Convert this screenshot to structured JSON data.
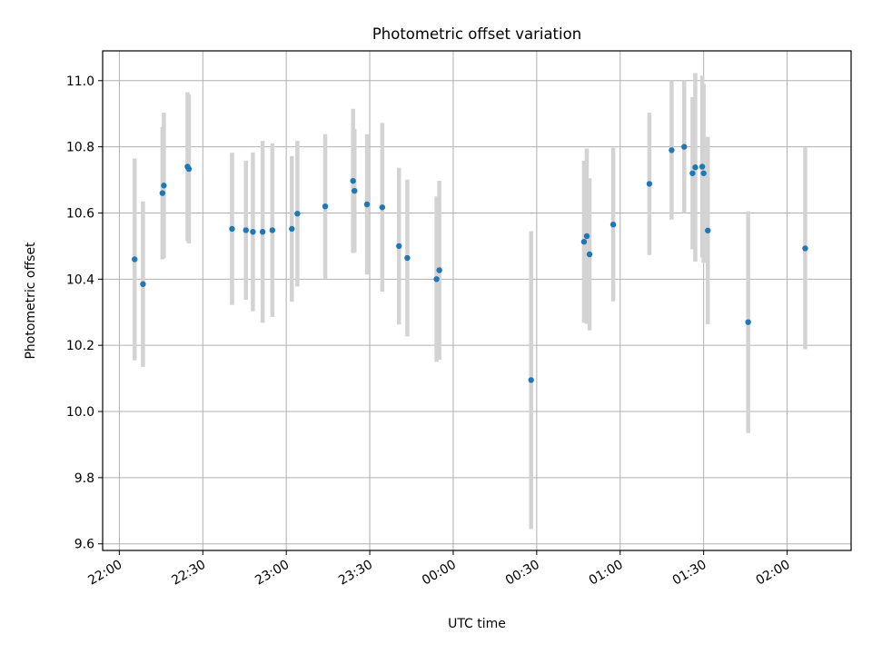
{
  "chart_data": {
    "type": "scatter",
    "title": "Photometric offset variation",
    "xlabel": "UTC time",
    "ylabel": "Photometric offset",
    "xlim": [
      "21:54",
      "02:23"
    ],
    "ylim": [
      9.58,
      11.09
    ],
    "x_ticks": [
      {
        "t": "22:00",
        "label": "22:00"
      },
      {
        "t": "22:30",
        "label": "22:30"
      },
      {
        "t": "23:00",
        "label": "23:00"
      },
      {
        "t": "23:30",
        "label": "23:30"
      },
      {
        "t": "00:00",
        "label": "00:00"
      },
      {
        "t": "00:30",
        "label": "00:30"
      },
      {
        "t": "01:00",
        "label": "01:00"
      },
      {
        "t": "01:30",
        "label": "01:30"
      },
      {
        "t": "02:00",
        "label": "02:00"
      }
    ],
    "y_ticks": [
      {
        "v": 9.6,
        "label": "9.6"
      },
      {
        "v": 9.8,
        "label": "9.8"
      },
      {
        "v": 10.0,
        "label": "10.0"
      },
      {
        "v": 10.2,
        "label": "10.2"
      },
      {
        "v": 10.4,
        "label": "10.4"
      },
      {
        "v": 10.6,
        "label": "10.6"
      },
      {
        "v": 10.8,
        "label": "10.8"
      },
      {
        "v": 11.0,
        "label": "11.0"
      }
    ],
    "grid": true,
    "marker_color": "#1f77b4",
    "errorbar_color": "#d3d3d3",
    "points": [
      {
        "t": "22:05:30",
        "y": 10.46,
        "err": 0.305
      },
      {
        "t": "22:08:30",
        "y": 10.385,
        "err": 0.25
      },
      {
        "t": "22:15:30",
        "y": 10.66,
        "err": 0.2
      },
      {
        "t": "22:16:00",
        "y": 10.683,
        "err": 0.22
      },
      {
        "t": "22:24:30",
        "y": 10.74,
        "err": 0.225
      },
      {
        "t": "22:25:00",
        "y": 10.733,
        "err": 0.225
      },
      {
        "t": "22:40:30",
        "y": 10.552,
        "err": 0.23
      },
      {
        "t": "22:45:30",
        "y": 10.548,
        "err": 0.21
      },
      {
        "t": "22:48:00",
        "y": 10.543,
        "err": 0.24
      },
      {
        "t": "22:51:30",
        "y": 10.543,
        "err": 0.275
      },
      {
        "t": "22:55:00",
        "y": 10.548,
        "err": 0.262
      },
      {
        "t": "23:02:00",
        "y": 10.552,
        "err": 0.22
      },
      {
        "t": "23:04:00",
        "y": 10.598,
        "err": 0.22
      },
      {
        "t": "23:14:00",
        "y": 10.62,
        "err": 0.218
      },
      {
        "t": "23:24:00",
        "y": 10.697,
        "err": 0.218
      },
      {
        "t": "23:24:30",
        "y": 10.667,
        "err": 0.187
      },
      {
        "t": "23:29:00",
        "y": 10.626,
        "err": 0.212
      },
      {
        "t": "23:34:30",
        "y": 10.617,
        "err": 0.255
      },
      {
        "t": "23:40:30",
        "y": 10.5,
        "err": 0.237
      },
      {
        "t": "23:43:30",
        "y": 10.464,
        "err": 0.237
      },
      {
        "t": "23:54:00",
        "y": 10.4,
        "err": 0.25
      },
      {
        "t": "23:55:00",
        "y": 10.427,
        "err": 0.27
      },
      {
        "t": "00:28:00",
        "y": 10.095,
        "err": 0.45
      },
      {
        "t": "00:47:00",
        "y": 10.513,
        "err": 0.245
      },
      {
        "t": "00:48:00",
        "y": 10.53,
        "err": 0.265
      },
      {
        "t": "00:49:00",
        "y": 10.475,
        "err": 0.23
      },
      {
        "t": "00:57:30",
        "y": 10.565,
        "err": 0.232
      },
      {
        "t": "01:10:30",
        "y": 10.688,
        "err": 0.215
      },
      {
        "t": "01:18:30",
        "y": 10.79,
        "err": 0.21
      },
      {
        "t": "01:23:00",
        "y": 10.8,
        "err": 0.2
      },
      {
        "t": "01:26:00",
        "y": 10.72,
        "err": 0.23
      },
      {
        "t": "01:27:00",
        "y": 10.738,
        "err": 0.285
      },
      {
        "t": "01:29:30",
        "y": 10.74,
        "err": 0.275
      },
      {
        "t": "01:30:00",
        "y": 10.72,
        "err": 0.27
      },
      {
        "t": "01:31:30",
        "y": 10.547,
        "err": 0.283
      },
      {
        "t": "01:46:00",
        "y": 10.27,
        "err": 0.335
      },
      {
        "t": "02:06:30",
        "y": 10.493,
        "err": 0.305
      }
    ]
  }
}
